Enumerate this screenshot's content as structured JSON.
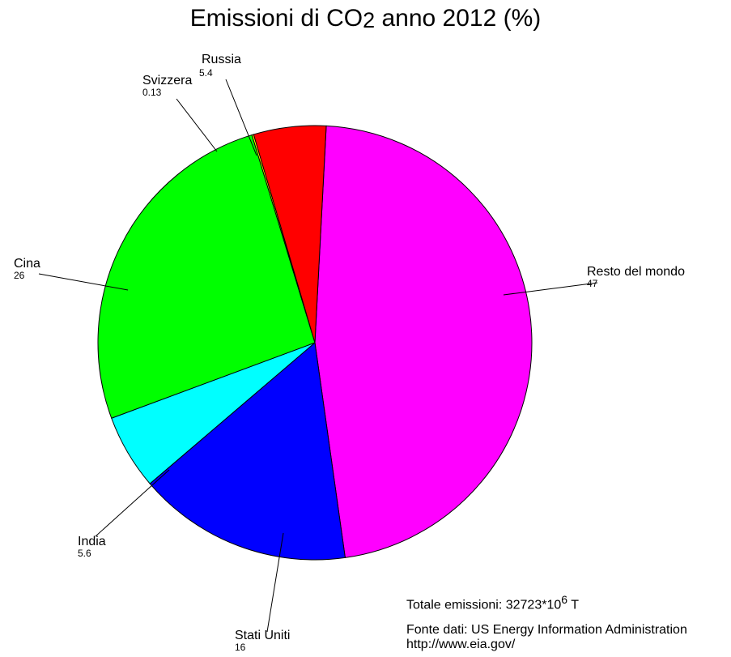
{
  "chart_data": {
    "type": "pie",
    "title": {
      "pre": "Emissioni di CO",
      "sub": "2",
      "post": " anno 2012 (%)"
    },
    "slices": [
      {
        "label": "Resto del mondo",
        "value": 47,
        "value_label": "47",
        "color": "#ff00ff"
      },
      {
        "label": "Stati Uniti",
        "value": 16,
        "value_label": "16",
        "color": "#0000ff"
      },
      {
        "label": "India",
        "value": 5.6,
        "value_label": "5.6",
        "color": "#00ffff"
      },
      {
        "label": "Cina",
        "value": 26,
        "value_label": "26",
        "color": "#00ff00"
      },
      {
        "label": "Svizzera",
        "value": 0.13,
        "value_label": "0.13",
        "color": "#ffff00"
      },
      {
        "label": "Russia",
        "value": 5.4,
        "value_label": "5.4",
        "color": "#ff0000"
      }
    ],
    "start_angle_deg": 87,
    "direction": "clockwise"
  },
  "notes": {
    "total_pre": "Totale emissioni: 32723*10",
    "total_exp": "6",
    "total_post": " T",
    "source_line1": "Fonte dati: US Energy Information Administration",
    "source_line2": "http://www.eia.gov/"
  }
}
